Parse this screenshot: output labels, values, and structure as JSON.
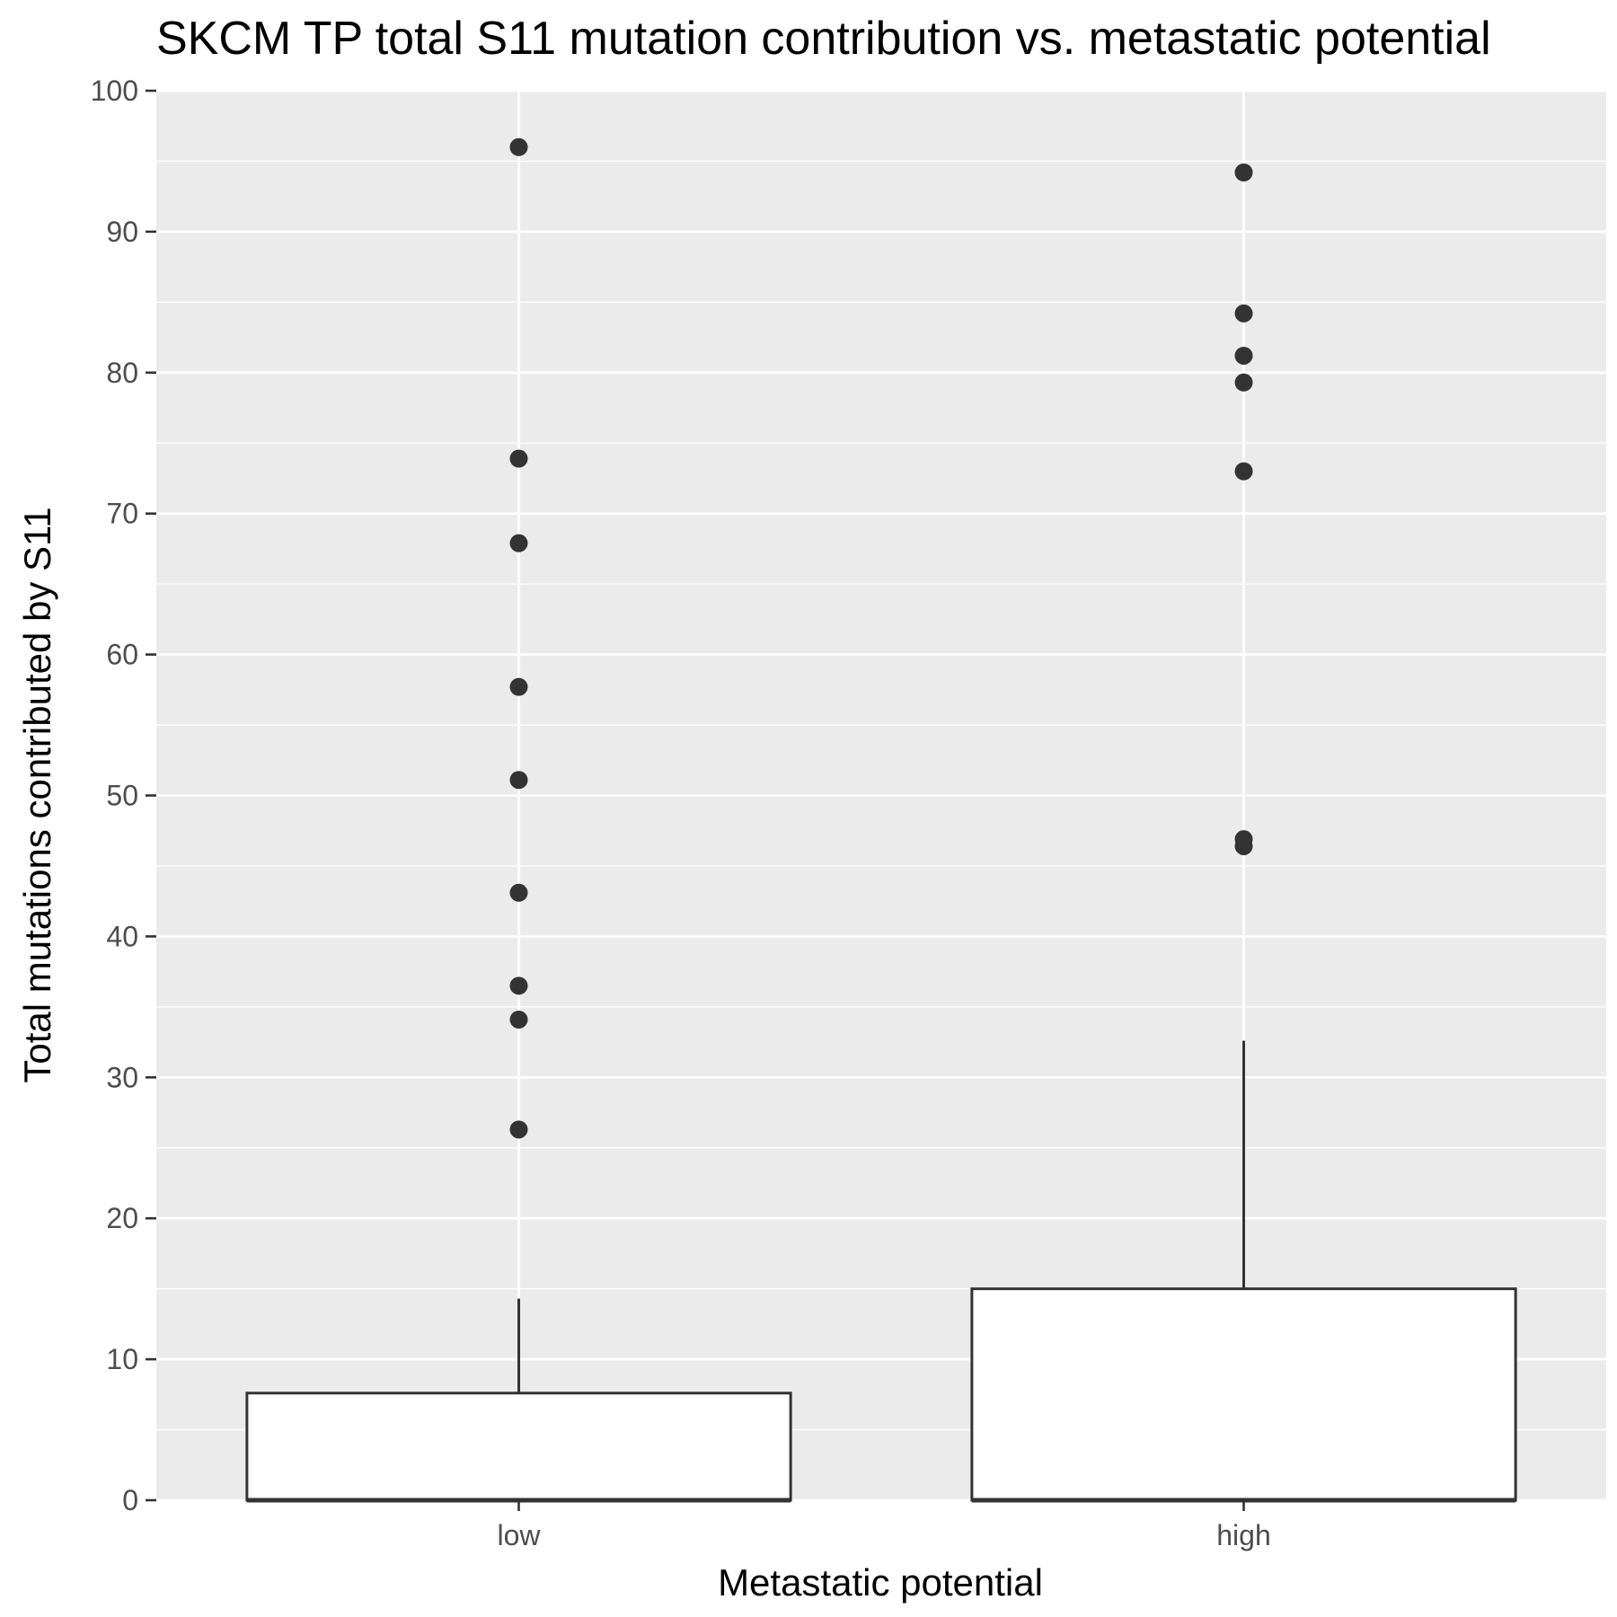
{
  "chart_data": {
    "type": "box",
    "title": "SKCM TP total S11 mutation contribution vs. metastatic potential",
    "xlabel": "Metastatic potential",
    "ylabel": "Total mutations contributed by S11",
    "ylim": [
      0,
      100
    ],
    "y_ticks": [
      "0",
      "10",
      "20",
      "30",
      "40",
      "50",
      "60",
      "70",
      "80",
      "90",
      "100"
    ],
    "categories": [
      "low",
      "high"
    ],
    "boxes": [
      {
        "category": "low",
        "min": 0,
        "q1": 0,
        "median": 0,
        "q3": 7.6,
        "whisker_high": 14.3,
        "outliers": [
          26.3,
          34.1,
          36.5,
          43.1,
          51.1,
          57.7,
          67.9,
          73.9,
          96.0
        ]
      },
      {
        "category": "high",
        "min": 0,
        "q1": 0,
        "median": 0,
        "q3": 15.0,
        "whisker_high": 32.6,
        "outliers": [
          46.4,
          46.9,
          73.0,
          79.3,
          81.2,
          84.2,
          94.2
        ]
      }
    ],
    "grid": true,
    "legend": "none",
    "colors": {
      "panel": "#ebebeb",
      "grid": "#ffffff",
      "box_fill": "#ffffff",
      "box_line": "#333333",
      "point": "#333333",
      "tick_label": "#4d4d4d",
      "text": "#000000"
    }
  }
}
